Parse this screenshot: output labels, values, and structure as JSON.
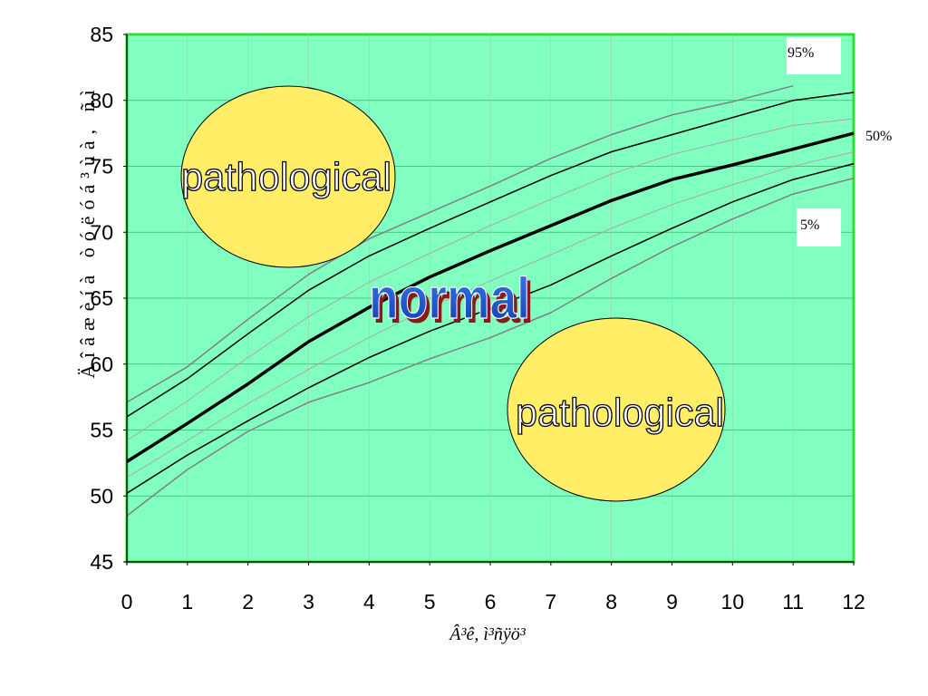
{
  "chart_data": {
    "type": "line",
    "xlabel": "Â³ê, ì³ñÿö³",
    "ylabel": "Äîâæèíà òóëóá³ùà, ñì",
    "xlim": [
      0,
      12
    ],
    "ylim": [
      45,
      85
    ],
    "x_ticks": [
      "0",
      "1",
      "2",
      "3",
      "4",
      "5",
      "6",
      "7",
      "8",
      "9",
      "10",
      "11",
      "12"
    ],
    "y_ticks": [
      "85",
      "80",
      "75",
      "70",
      "65",
      "60",
      "55",
      "50",
      "45"
    ],
    "background_color": "#80ffc0",
    "plot_border_color": "#33dd33",
    "grid": true,
    "series": [
      {
        "name": "95%",
        "color": "#808080",
        "width": 1.5,
        "x": [
          0,
          1,
          2,
          3,
          4,
          5,
          6,
          7,
          8,
          9,
          10,
          11
        ],
        "y": [
          57.1,
          59.8,
          63.4,
          66.8,
          69.5,
          71.5,
          73.5,
          75.6,
          77.4,
          78.9,
          79.9,
          81.1
        ]
      },
      {
        "name": "",
        "color": "#000000",
        "width": 1.5,
        "x": [
          0,
          1,
          2,
          3,
          4,
          5,
          6,
          7,
          8,
          9,
          10,
          11,
          12
        ],
        "y": [
          56.0,
          58.9,
          62.3,
          65.6,
          68.2,
          70.3,
          72.3,
          74.3,
          76.1,
          77.4,
          78.7,
          80.0,
          80.6
        ]
      },
      {
        "name": "",
        "color": "#aaaaaa",
        "width": 1,
        "x": [
          0,
          1,
          2,
          3,
          4,
          5,
          6,
          7,
          8,
          9,
          10,
          11,
          12
        ],
        "y": [
          54.2,
          57.2,
          60.5,
          63.6,
          66.2,
          68.4,
          70.5,
          72.5,
          74.4,
          75.9,
          77.0,
          78.1,
          78.6
        ]
      },
      {
        "name": "50%",
        "color": "#000000",
        "width": 3.5,
        "x": [
          0,
          1,
          2,
          3,
          4,
          5,
          6,
          7,
          8,
          9,
          10,
          11,
          12
        ],
        "y": [
          52.6,
          55.5,
          58.5,
          61.7,
          64.3,
          66.6,
          68.6,
          70.5,
          72.4,
          74.0,
          75.1,
          76.3,
          77.5
        ]
      },
      {
        "name": "",
        "color": "#aaaaaa",
        "width": 1,
        "x": [
          0,
          1,
          2,
          3,
          4,
          5,
          6,
          7,
          8,
          9,
          10,
          11,
          12
        ],
        "y": [
          51.4,
          54.2,
          57.0,
          59.6,
          62.0,
          64.3,
          66.3,
          68.3,
          70.3,
          72.1,
          73.6,
          75.0,
          76.1
        ]
      },
      {
        "name": "",
        "color": "#000000",
        "width": 1.5,
        "x": [
          0,
          1,
          2,
          3,
          4,
          5,
          6,
          7,
          8,
          9,
          10,
          11,
          12
        ],
        "y": [
          50.2,
          53.1,
          55.7,
          58.2,
          60.5,
          62.5,
          64.2,
          66.0,
          68.2,
          70.3,
          72.3,
          74.0,
          75.2
        ]
      },
      {
        "name": "5%",
        "color": "#808080",
        "width": 1.5,
        "x": [
          0,
          1,
          2,
          3,
          4,
          5,
          6,
          7,
          8,
          9,
          10,
          11,
          12
        ],
        "y": [
          48.5,
          52.0,
          54.9,
          57.1,
          58.6,
          60.4,
          62.0,
          63.9,
          66.5,
          68.9,
          71.0,
          72.9,
          74.1
        ]
      }
    ],
    "percentile_labels": {
      "p95": "95%",
      "p50": "50%",
      "p5": "5%"
    },
    "annotations": {
      "upper_zone": "pathological",
      "lower_zone": "pathological",
      "normal": "normal"
    },
    "zone_fill": "#ffee66",
    "normal_text_color": "#1f5fd6"
  }
}
